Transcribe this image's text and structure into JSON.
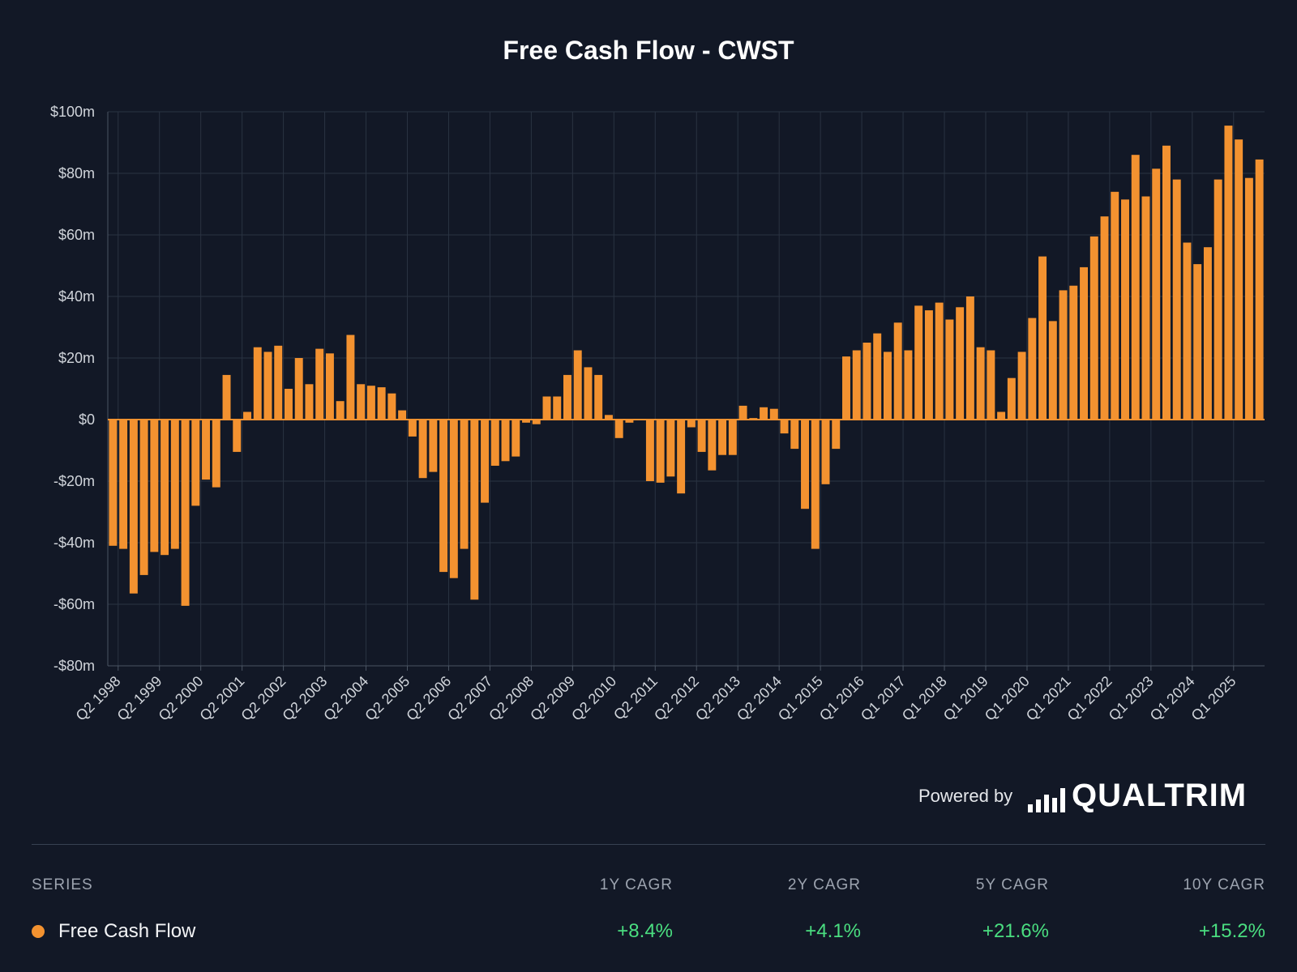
{
  "title": "Free Cash Flow - CWST",
  "chart_data": {
    "type": "bar",
    "title": "Free Cash Flow - CWST",
    "xlabel": "",
    "ylabel": "",
    "ylim": [
      -80,
      100
    ],
    "y_ticks": [
      {
        "value": 100,
        "label": "$100m"
      },
      {
        "value": 80,
        "label": "$80m"
      },
      {
        "value": 60,
        "label": "$60m"
      },
      {
        "value": 40,
        "label": "$40m"
      },
      {
        "value": 20,
        "label": "$20m"
      },
      {
        "value": 0,
        "label": "$0"
      },
      {
        "value": -20,
        "label": "-$20m"
      },
      {
        "value": -40,
        "label": "-$40m"
      },
      {
        "value": -60,
        "label": "-$60m"
      },
      {
        "value": -80,
        "label": "-$80m"
      }
    ],
    "x_tick_labels": [
      "Q2 1998",
      "Q2 1999",
      "Q2 2000",
      "Q2 2001",
      "Q2 2002",
      "Q2 2003",
      "Q2 2004",
      "Q2 2005",
      "Q2 2006",
      "Q2 2007",
      "Q2 2008",
      "Q2 2009",
      "Q2 2010",
      "Q2 2011",
      "Q2 2012",
      "Q2 2013",
      "Q2 2014",
      "Q1 2015",
      "Q1 2016",
      "Q1 2017",
      "Q1 2018",
      "Q1 2019",
      "Q1 2020",
      "Q1 2021",
      "Q1 2022",
      "Q1 2023",
      "Q1 2024",
      "Q1 2025"
    ],
    "grid": true,
    "series": [
      {
        "color": "#f39230",
        "values": [
          -41,
          -42,
          -56.5,
          -50.5,
          -43,
          -44,
          -42,
          -60.5,
          -28,
          -19.5,
          -22,
          14.5,
          -10.5,
          2.5,
          23.5,
          22,
          24,
          10,
          20,
          11.5,
          23,
          21.5,
          6,
          27.5,
          11.5,
          11,
          10.5,
          8.5,
          3,
          -5.5,
          -19,
          -17,
          -49.5,
          -51.5,
          -42,
          -58.5,
          -27,
          -15,
          -13.5,
          -12,
          -1,
          -1.5,
          7.5,
          7.5,
          14.5,
          22.5,
          17,
          14.5,
          1.5,
          -6,
          -1,
          0,
          -20,
          -20.5,
          -18.5,
          -24,
          -2.5,
          -10.5,
          -16.5,
          -11.5,
          -11.5,
          4.5,
          0.5,
          4,
          3.5,
          -4.5,
          -9.5,
          -29,
          -42,
          -21,
          -9.5,
          20.5,
          22.5,
          25,
          28,
          22,
          31.5,
          22.5,
          37,
          35.5,
          38,
          32.5,
          36.5,
          40,
          23.5,
          22.5,
          2.5,
          13.5,
          22,
          33,
          53,
          32,
          42,
          43.5,
          49.5,
          59.5,
          66,
          74,
          71.5,
          86,
          72.5,
          81.5,
          89,
          78,
          57.5,
          50.5,
          56,
          78,
          95.5,
          91,
          78.5,
          84.5
        ]
      }
    ]
  },
  "footer": {
    "powered_by": "Powered by",
    "logo_text": "QUALTRIM",
    "logo_icon": "bars-logo-icon"
  },
  "table": {
    "headers": {
      "series": "SERIES",
      "y1": "1Y CAGR",
      "y2": "2Y CAGR",
      "y5": "5Y CAGR",
      "y10": "10Y CAGR"
    },
    "rows": [
      {
        "series": "Free Cash Flow",
        "color": "#f39230",
        "y1": "+8.4%",
        "y2": "+4.1%",
        "y5": "+21.6%",
        "y10": "+15.2%"
      }
    ]
  }
}
